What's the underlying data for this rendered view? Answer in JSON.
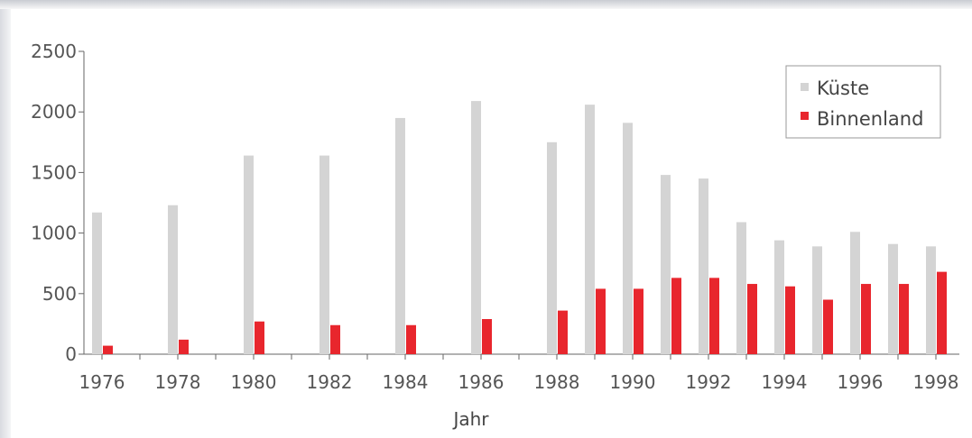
{
  "chart_data": {
    "type": "bar",
    "categories": [
      "1976",
      "1977",
      "1978",
      "1979",
      "1980",
      "1981",
      "1982",
      "1983",
      "1984",
      "1985",
      "1986",
      "1987",
      "1988",
      "1989",
      "1990",
      "1991",
      "1992",
      "1993",
      "1994",
      "1995",
      "1996",
      "1997",
      "1998"
    ],
    "xtick_labels": [
      "1976",
      "1978",
      "1980",
      "1982",
      "1984",
      "1986",
      "1988",
      "1990",
      "1992",
      "1994",
      "1996",
      "1998"
    ],
    "series": [
      {
        "name": "Küste",
        "color": "#d4d4d4",
        "values": [
          1170,
          null,
          1230,
          null,
          1640,
          null,
          1640,
          null,
          1950,
          null,
          2090,
          null,
          1750,
          2060,
          1910,
          1480,
          1450,
          1090,
          940,
          890,
          1010,
          910,
          890
        ]
      },
      {
        "name": "Binnenland",
        "color": "#e8262d",
        "values": [
          70,
          null,
          120,
          null,
          270,
          null,
          240,
          null,
          240,
          null,
          290,
          null,
          360,
          540,
          540,
          630,
          630,
          580,
          560,
          450,
          580,
          580,
          680
        ]
      }
    ],
    "xlabel": "Jahr",
    "ylabel": "",
    "ylim": [
      0,
      2500
    ],
    "yticks": [
      0,
      500,
      1000,
      1500,
      2000,
      2500
    ],
    "grid": false,
    "legend_position": "top-right"
  }
}
